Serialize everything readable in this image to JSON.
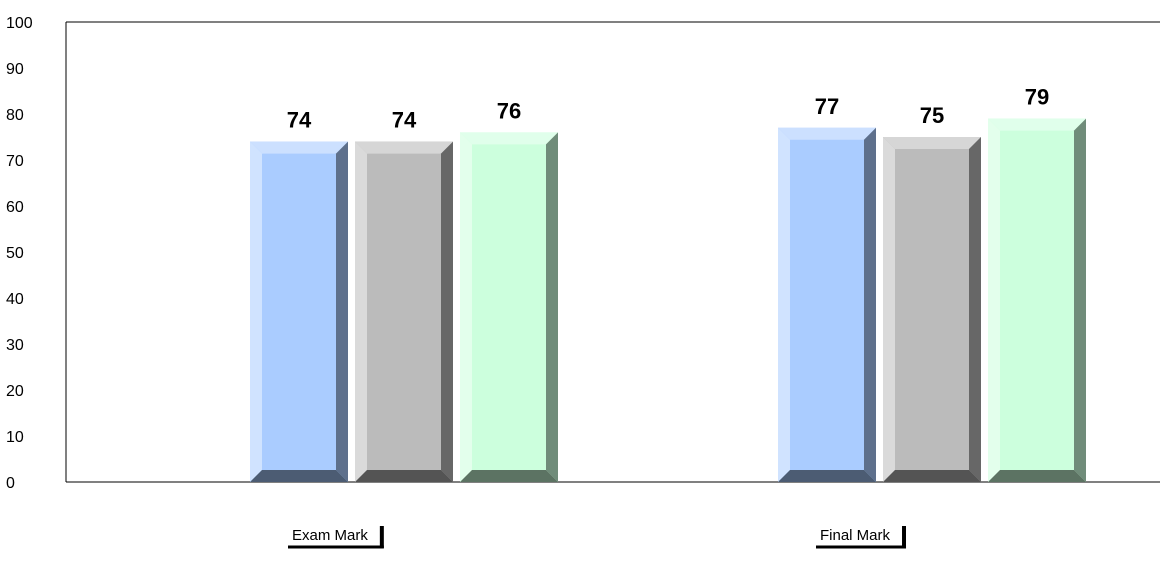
{
  "chart_data": {
    "type": "bar",
    "categories": [
      "Exam Mark",
      "Final Mark"
    ],
    "series": [
      {
        "values": [
          74,
          77
        ],
        "color": "#aaccff"
      },
      {
        "values": [
          74,
          75
        ],
        "color": "#bbbbbb"
      },
      {
        "values": [
          76,
          79
        ],
        "color": "#ccffdd"
      }
    ],
    "ylim": [
      0,
      100
    ],
    "yticks": [
      0,
      10,
      20,
      30,
      40,
      50,
      60,
      70,
      80,
      90,
      100
    ],
    "grid": false,
    "legend": "none",
    "title": "",
    "xlabel": "",
    "ylabel": ""
  }
}
